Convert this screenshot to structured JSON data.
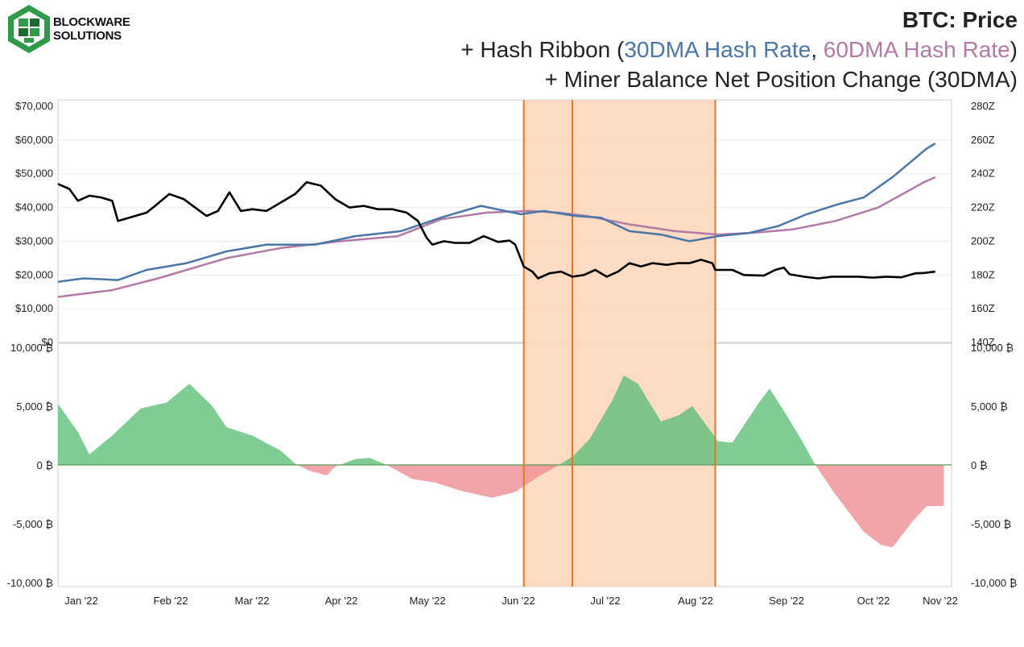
{
  "logo": {
    "name_line1": "BLOCKWARE",
    "name_line2": "SOLUTIONS",
    "icon": "blockware-logo-icon",
    "colors": {
      "green": "#2f9a48",
      "dark": "#1c6b30"
    }
  },
  "title": {
    "line1": "BTC: Price",
    "line2_prefix": "+ Hash Ribbon (",
    "line2_series1": "30DMA Hash Rate",
    "line2_sep": ", ",
    "line2_series2": "60DMA Hash Rate",
    "line2_suffix": ")",
    "line3": "+ Miner Balance Net Position Change (30DMA)"
  },
  "chart_data": [
    {
      "type": "line",
      "panel": "top",
      "x_axis": {
        "range": [
          "2022-01-01",
          "2022-11-05"
        ],
        "tick_labels": [
          "Jan '22",
          "Feb '22",
          "Mar '22",
          "Apr '22",
          "May '22",
          "Jun '22",
          "Jul '22",
          "Aug '22",
          "Sep '22",
          "Oct '22",
          "Nov '22"
        ]
      },
      "y_left": {
        "range": [
          0,
          70000
        ],
        "tick_labels": [
          "$0",
          "$10,000",
          "$20,000",
          "$30,000",
          "$40,000",
          "$50,000",
          "$60,000",
          "$70,000"
        ]
      },
      "y_right": {
        "range": [
          140,
          280
        ],
        "tick_labels": [
          "140Z",
          "160Z",
          "180Z",
          "200Z",
          "220Z",
          "240Z",
          "260Z",
          "280Z"
        ]
      },
      "grid": "horizontal",
      "series": [
        {
          "color": "#000000",
          "axis": "left",
          "points": [
            [
              "2022-01-01",
              47000
            ],
            [
              "2022-01-05",
              45500
            ],
            [
              "2022-01-08",
              42000
            ],
            [
              "2022-01-12",
              43500
            ],
            [
              "2022-01-16",
              43000
            ],
            [
              "2022-01-20",
              42000
            ],
            [
              "2022-01-22",
              36000
            ],
            [
              "2022-01-26",
              37000
            ],
            [
              "2022-02-01",
              38500
            ],
            [
              "2022-02-04",
              40500
            ],
            [
              "2022-02-09",
              44000
            ],
            [
              "2022-02-14",
              42500
            ],
            [
              "2022-02-18",
              40000
            ],
            [
              "2022-02-22",
              37500
            ],
            [
              "2022-02-26",
              39000
            ],
            [
              "2022-03-02",
              44500
            ],
            [
              "2022-03-06",
              39000
            ],
            [
              "2022-03-10",
              39500
            ],
            [
              "2022-03-15",
              39000
            ],
            [
              "2022-03-20",
              41500
            ],
            [
              "2022-03-25",
              44000
            ],
            [
              "2022-03-29",
              47500
            ],
            [
              "2022-04-03",
              46500
            ],
            [
              "2022-04-08",
              42500
            ],
            [
              "2022-04-13",
              40000
            ],
            [
              "2022-04-18",
              40500
            ],
            [
              "2022-04-23",
              39500
            ],
            [
              "2022-04-28",
              39500
            ],
            [
              "2022-05-03",
              38500
            ],
            [
              "2022-05-07",
              36000
            ],
            [
              "2022-05-10",
              31000
            ],
            [
              "2022-05-12",
              29000
            ],
            [
              "2022-05-16",
              30000
            ],
            [
              "2022-05-20",
              29500
            ],
            [
              "2022-05-25",
              29500
            ],
            [
              "2022-05-30",
              31500
            ],
            [
              "2022-06-04",
              29800
            ],
            [
              "2022-06-08",
              30200
            ],
            [
              "2022-06-10",
              29000
            ],
            [
              "2022-06-13",
              22500
            ],
            [
              "2022-06-16",
              21000
            ],
            [
              "2022-06-18",
              19000
            ],
            [
              "2022-06-22",
              20500
            ],
            [
              "2022-06-26",
              21000
            ],
            [
              "2022-06-30",
              19500
            ],
            [
              "2022-07-04",
              20000
            ],
            [
              "2022-07-08",
              21500
            ],
            [
              "2022-07-12",
              19500
            ],
            [
              "2022-07-16",
              21000
            ],
            [
              "2022-07-20",
              23500
            ],
            [
              "2022-07-24",
              22500
            ],
            [
              "2022-07-28",
              23500
            ],
            [
              "2022-08-02",
              23000
            ],
            [
              "2022-08-06",
              23500
            ],
            [
              "2022-08-10",
              23500
            ],
            [
              "2022-08-14",
              24500
            ],
            [
              "2022-08-18",
              23500
            ],
            [
              "2022-08-19",
              21500
            ],
            [
              "2022-08-25",
              21500
            ],
            [
              "2022-08-29",
              20000
            ],
            [
              "2022-09-05",
              19800
            ],
            [
              "2022-09-09",
              21500
            ],
            [
              "2022-09-12",
              22200
            ],
            [
              "2022-09-14",
              20200
            ],
            [
              "2022-09-19",
              19500
            ],
            [
              "2022-09-24",
              19000
            ],
            [
              "2022-09-29",
              19500
            ],
            [
              "2022-10-03",
              19500
            ],
            [
              "2022-10-08",
              19500
            ],
            [
              "2022-10-13",
              19200
            ],
            [
              "2022-10-18",
              19500
            ],
            [
              "2022-10-23",
              19300
            ],
            [
              "2022-10-28",
              20500
            ],
            [
              "2022-10-31",
              20600
            ],
            [
              "2022-11-04",
              21000
            ]
          ]
        },
        {
          "color": "#4a76a8",
          "axis": "right",
          "points": [
            [
              "2022-01-01",
              176
            ],
            [
              "2022-01-10",
              178
            ],
            [
              "2022-01-22",
              177
            ],
            [
              "2022-02-01",
              183
            ],
            [
              "2022-02-15",
              187
            ],
            [
              "2022-03-01",
              194
            ],
            [
              "2022-03-15",
              198
            ],
            [
              "2022-04-01",
              198
            ],
            [
              "2022-04-15",
              203
            ],
            [
              "2022-05-01",
              206
            ],
            [
              "2022-05-15",
              214
            ],
            [
              "2022-05-29",
              221
            ],
            [
              "2022-06-12",
              216
            ],
            [
              "2022-06-20",
              218
            ],
            [
              "2022-07-01",
              215
            ],
            [
              "2022-07-10",
              214
            ],
            [
              "2022-07-20",
              206
            ],
            [
              "2022-07-31",
              204
            ],
            [
              "2022-08-10",
              200
            ],
            [
              "2022-08-20",
              203
            ],
            [
              "2022-08-31",
              205
            ],
            [
              "2022-09-10",
              209
            ],
            [
              "2022-09-20",
              216
            ],
            [
              "2022-10-01",
              222
            ],
            [
              "2022-10-10",
              226
            ],
            [
              "2022-10-20",
              238
            ],
            [
              "2022-11-01",
              255
            ],
            [
              "2022-11-04",
              258
            ]
          ]
        },
        {
          "color": "#b27aa5",
          "axis": "right",
          "points": [
            [
              "2022-01-01",
              167
            ],
            [
              "2022-01-20",
              171
            ],
            [
              "2022-02-05",
              178
            ],
            [
              "2022-03-01",
              190
            ],
            [
              "2022-03-20",
              196
            ],
            [
              "2022-04-10",
              200
            ],
            [
              "2022-04-30",
              203
            ],
            [
              "2022-05-15",
              213
            ],
            [
              "2022-05-31",
              217
            ],
            [
              "2022-06-15",
              218
            ],
            [
              "2022-06-25",
              217
            ],
            [
              "2022-07-05",
              215
            ],
            [
              "2022-07-20",
              210
            ],
            [
              "2022-08-05",
              206
            ],
            [
              "2022-08-20",
              204
            ],
            [
              "2022-09-01",
              205
            ],
            [
              "2022-09-15",
              207
            ],
            [
              "2022-09-30",
              212
            ],
            [
              "2022-10-15",
              220
            ],
            [
              "2022-10-31",
              235
            ],
            [
              "2022-11-04",
              238
            ]
          ]
        }
      ]
    },
    {
      "type": "area",
      "panel": "bottom",
      "y_left": {
        "range": [
          -10000,
          10000
        ],
        "tick_labels": [
          "10,000 ₿",
          "5,000 ₿",
          "0 ₿",
          "-5,000 ₿",
          "-10,000 ₿"
        ]
      },
      "y_right": {
        "range": [
          -10000,
          10000
        ],
        "tick_labels": [
          "10,000 ₿",
          "5,000 ₿",
          "0 ₿",
          "-5,000 ₿",
          "-10,000 ₿"
        ]
      },
      "positive_color": "#5fbf7a",
      "negative_color": "#ee8f92",
      "series": [
        {
          "points": [
            [
              "2022-01-01",
              5200
            ],
            [
              "2022-01-08",
              2800
            ],
            [
              "2022-01-12",
              900
            ],
            [
              "2022-01-20",
              2500
            ],
            [
              "2022-01-30",
              4800
            ],
            [
              "2022-02-08",
              5300
            ],
            [
              "2022-02-14",
              6500
            ],
            [
              "2022-02-16",
              6900
            ],
            [
              "2022-02-24",
              5000
            ],
            [
              "2022-03-01",
              3200
            ],
            [
              "2022-03-10",
              2500
            ],
            [
              "2022-03-20",
              1200
            ],
            [
              "2022-03-25",
              100
            ],
            [
              "2022-03-30",
              -500
            ],
            [
              "2022-04-05",
              -900
            ],
            [
              "2022-04-08",
              -150
            ],
            [
              "2022-04-15",
              500
            ],
            [
              "2022-04-20",
              600
            ],
            [
              "2022-04-26",
              0
            ],
            [
              "2022-05-05",
              -1200
            ],
            [
              "2022-05-13",
              -1500
            ],
            [
              "2022-05-22",
              -2200
            ],
            [
              "2022-06-02",
              -2800
            ],
            [
              "2022-06-10",
              -2300
            ],
            [
              "2022-06-18",
              -1000
            ],
            [
              "2022-06-24",
              -200
            ],
            [
              "2022-06-30",
              700
            ],
            [
              "2022-07-06",
              2200
            ],
            [
              "2022-07-14",
              5500
            ],
            [
              "2022-07-18",
              7600
            ],
            [
              "2022-07-23",
              6900
            ],
            [
              "2022-07-31",
              3700
            ],
            [
              "2022-08-06",
              4200
            ],
            [
              "2022-08-11",
              5000
            ],
            [
              "2022-08-20",
              2000
            ],
            [
              "2022-08-25",
              1900
            ],
            [
              "2022-09-03",
              5200
            ],
            [
              "2022-09-07",
              6500
            ],
            [
              "2022-09-13",
              4200
            ],
            [
              "2022-09-18",
              2200
            ],
            [
              "2022-09-23",
              0
            ],
            [
              "2022-09-30",
              -2500
            ],
            [
              "2022-10-10",
              -5700
            ],
            [
              "2022-10-16",
              -6800
            ],
            [
              "2022-10-20",
              -7000
            ],
            [
              "2022-10-27",
              -4800
            ],
            [
              "2022-11-01",
              -3500
            ],
            [
              "2022-11-07",
              -3500
            ]
          ]
        }
      ]
    }
  ],
  "highlight_bands": [
    {
      "from": "2022-06-13",
      "to": "2022-08-19",
      "color": "#fdd6b8"
    }
  ],
  "vertical_lines": [
    {
      "date": "2022-06-13",
      "color": "#e8761e"
    },
    {
      "date": "2022-06-30",
      "color": "#e8761e"
    },
    {
      "date": "2022-08-19",
      "color": "#e8761e"
    }
  ]
}
